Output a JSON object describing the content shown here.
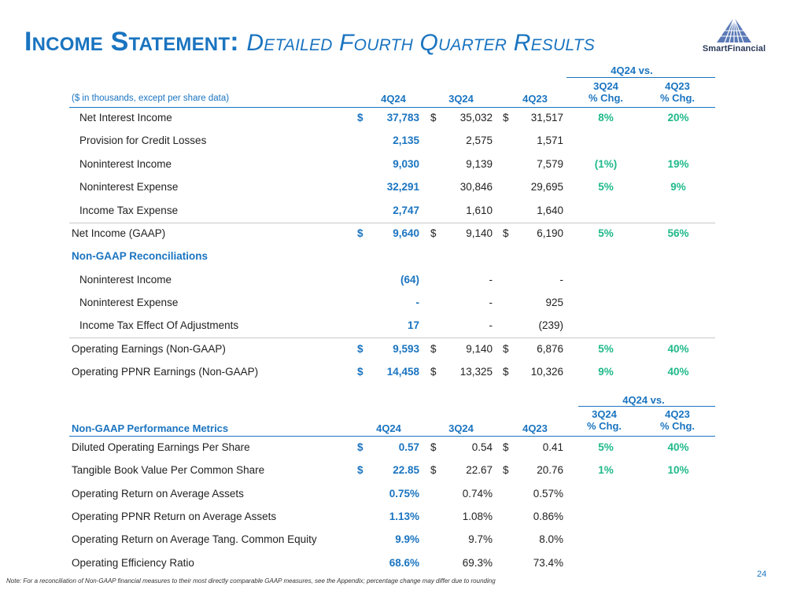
{
  "title": {
    "main": "Income Statement:",
    "sub": "Detailed Fourth Quarter Results"
  },
  "logo": {
    "text": "SmartFinancial"
  },
  "table1": {
    "vs_label": "4Q24 vs.",
    "unit_label": "($ in thousands, except per share data)",
    "col_4q24": "4Q24",
    "col_3q24": "3Q24",
    "col_4q23": "4Q23",
    "chg1_line1": "3Q24",
    "chg1_line2": "% Chg.",
    "chg2_line1": "4Q23",
    "chg2_line2": "% Chg.",
    "rows": [
      {
        "label": "Net Interest Income",
        "d1": "$",
        "v1": "37,783",
        "d2": "$",
        "v2": "35,032",
        "d3": "$",
        "v3": "31,517",
        "p1": "8%",
        "p2": "20%"
      },
      {
        "label": "Provision for Credit Losses",
        "v1": "2,135",
        "v2": "2,575",
        "v3": "1,571"
      },
      {
        "label": "Noninterest Income",
        "v1": "9,030",
        "v2": "9,139",
        "v3": "7,579",
        "p1": "(1%)",
        "p2": "19%"
      },
      {
        "label": "Noninterest Expense",
        "v1": "32,291",
        "v2": "30,846",
        "v3": "29,695",
        "p1": "5%",
        "p2": "9%"
      },
      {
        "label": "Income Tax Expense",
        "v1": "2,747",
        "v2": "1,610",
        "v3": "1,640"
      },
      {
        "label": "Net Income (GAAP)",
        "d1": "$",
        "v1": "9,640",
        "d2": "$",
        "v2": "9,140",
        "d3": "$",
        "v3": "6,190",
        "p1": "5%",
        "p2": "56%"
      },
      {
        "label": "Non-GAAP Reconciliations"
      },
      {
        "label": "Noninterest Income",
        "v1": "(64)",
        "v2": "-",
        "v3": "-"
      },
      {
        "label": "Noninterest Expense",
        "v1": "-",
        "v2": "-",
        "v3": "925"
      },
      {
        "label": "Income Tax Effect Of Adjustments",
        "v1": "17",
        "v2": "-",
        "v3": "(239)"
      },
      {
        "label": "Operating Earnings (Non-GAAP)",
        "d1": "$",
        "v1": "9,593",
        "d2": "$",
        "v2": "9,140",
        "d3": "$",
        "v3": "6,876",
        "p1": "5%",
        "p2": "40%"
      },
      {
        "label": "Operating PPNR Earnings (Non-GAAP)",
        "d1": "$",
        "v1": "14,458",
        "d2": "$",
        "v2": "13,325",
        "d3": "$",
        "v3": "10,326",
        "p1": "9%",
        "p2": "40%"
      }
    ]
  },
  "table2": {
    "vs_label": "4Q24 vs.",
    "section_label": "Non-GAAP Performance Metrics",
    "col_4q24": "4Q24",
    "col_3q24": "3Q24",
    "col_4q23": "4Q23",
    "chg1_line1": "3Q24",
    "chg1_line2": "% Chg.",
    "chg2_line1": "4Q23",
    "chg2_line2": "% Chg.",
    "rows": [
      {
        "label": "Diluted Operating Earnings Per Share",
        "d1": "$",
        "v1": "0.57",
        "d2": "$",
        "v2": "0.54",
        "d3": "$",
        "v3": "0.41",
        "p1": "5%",
        "p2": "40%"
      },
      {
        "label": "Tangible Book Value Per Common Share",
        "d1": "$",
        "v1": "22.85",
        "d2": "$",
        "v2": "22.67",
        "d3": "$",
        "v3": "20.76",
        "p1": "1%",
        "p2": "10%"
      },
      {
        "label": "Operating Return on Average Assets",
        "v1": "0.75%",
        "v2": "0.74%",
        "v3": "0.57%"
      },
      {
        "label": "Operating PPNR Return on Average Assets",
        "v1": "1.13%",
        "v2": "1.08%",
        "v3": "0.86%"
      },
      {
        "label": "Operating Return on Average Tang. Common Equity",
        "v1": "9.9%",
        "v2": "9.7%",
        "v3": "8.0%"
      },
      {
        "label": "Operating Efficiency Ratio",
        "v1": "68.6%",
        "v2": "69.3%",
        "v3": "73.4%"
      }
    ]
  },
  "footnote": "Note: For a reconciliation of Non-GAAP financial measures to their most directly comparable GAAP measures, see the Appendix; percentage change may differ due to rounding",
  "page_number": "24"
}
